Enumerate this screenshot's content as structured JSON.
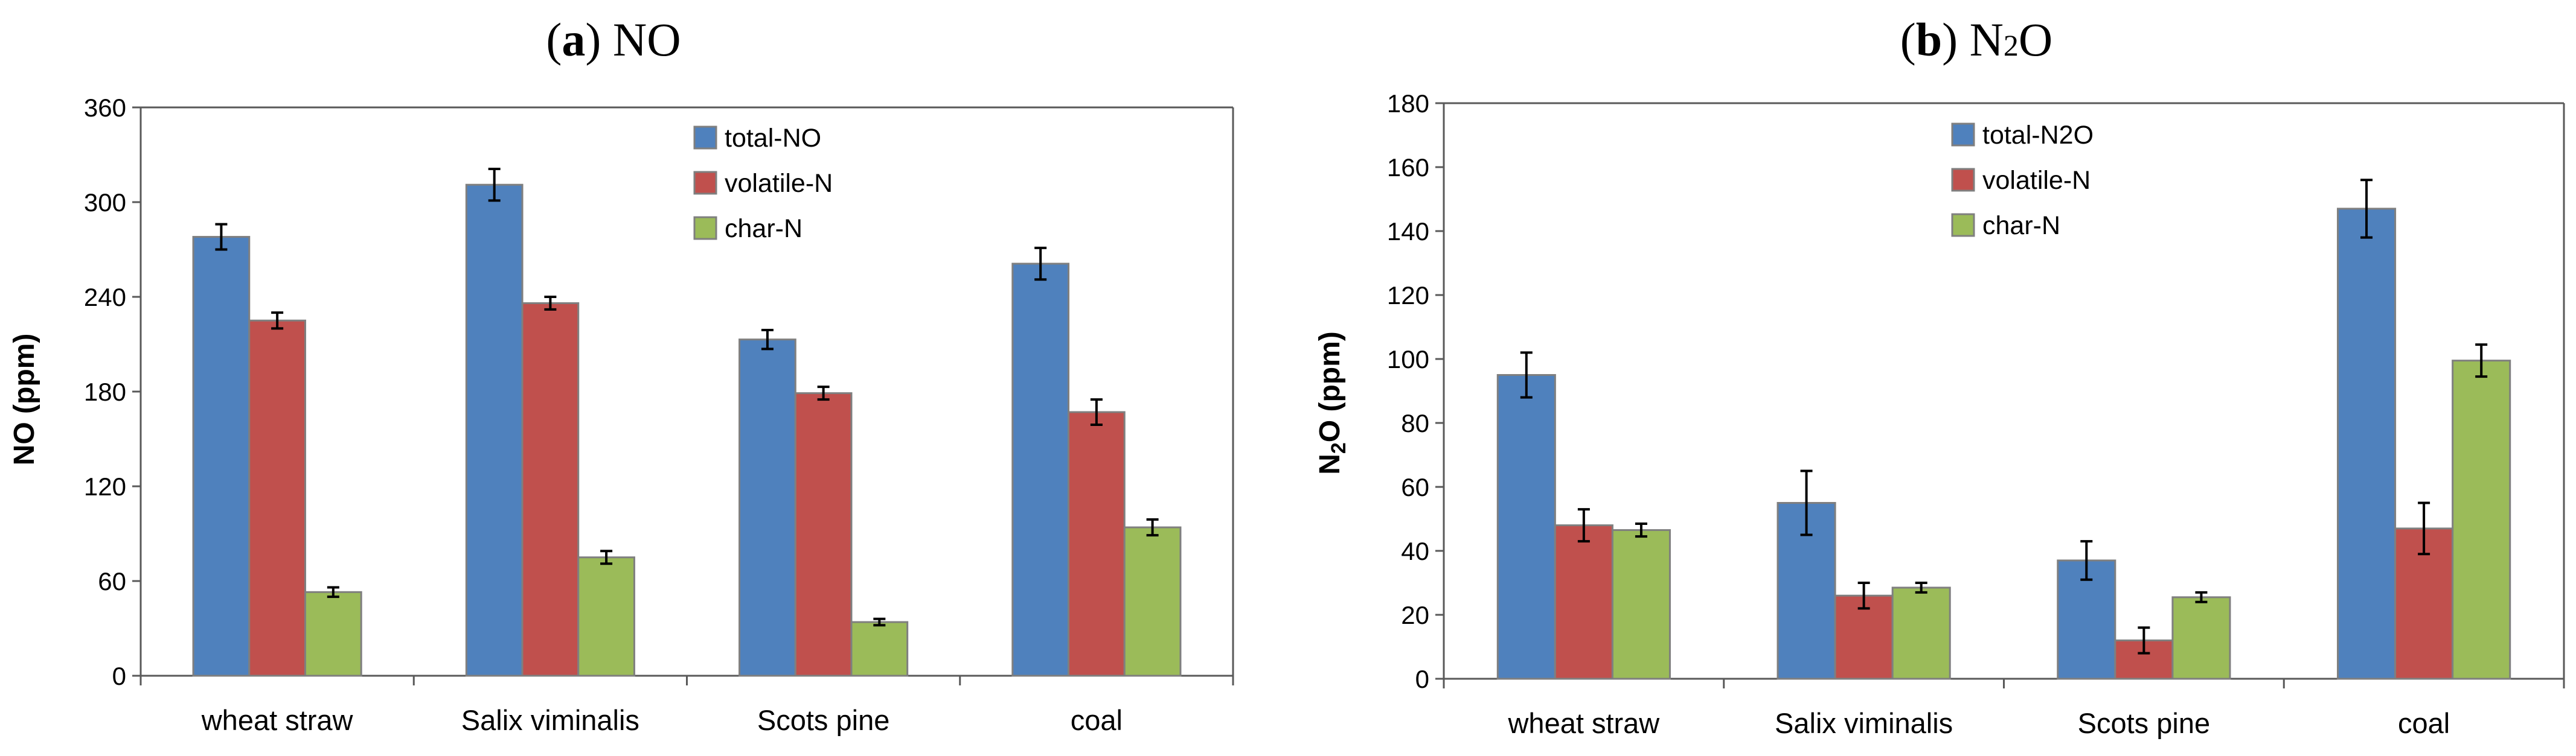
{
  "colors": {
    "total": "#4F81BD",
    "volatile": "#C0504D",
    "char": "#9BBB59",
    "bar_stroke": "#7F7F7F",
    "axis": "#595959"
  },
  "chart_data": [
    {
      "type": "bar",
      "title_letter": "a",
      "title_text": "NO",
      "ylabel": "NO (ppm)",
      "xlabel": "",
      "ylim": [
        0,
        360
      ],
      "yticks": [
        0,
        60,
        120,
        180,
        240,
        300,
        360
      ],
      "categories": [
        "wheat straw",
        "Salix viminalis",
        "Scots pine",
        "coal"
      ],
      "legend_position": "top-center",
      "series": [
        {
          "name": "total-NO",
          "color_key": "total",
          "values": [
            278,
            311,
            213,
            261
          ],
          "errors": [
            8,
            10,
            6,
            10
          ]
        },
        {
          "name": "volatile-N",
          "color_key": "volatile",
          "values": [
            225,
            236,
            179,
            167
          ],
          "errors": [
            5,
            4,
            4,
            8
          ]
        },
        {
          "name": "char-N",
          "color_key": "char",
          "values": [
            53,
            75,
            34,
            94
          ],
          "errors": [
            3,
            4,
            2,
            5
          ]
        }
      ]
    },
    {
      "type": "bar",
      "title_letter": "b",
      "title_text": "N2O",
      "ylabel": "N2O (ppm)",
      "xlabel": "",
      "ylim": [
        0,
        180
      ],
      "yticks": [
        0,
        20,
        40,
        60,
        80,
        100,
        120,
        140,
        160,
        180
      ],
      "categories": [
        "wheat straw",
        "Salix viminalis",
        "Scots pine",
        "coal"
      ],
      "legend_position": "top-center",
      "series": [
        {
          "name": "total-N2O",
          "color_key": "total",
          "values": [
            95,
            55,
            37,
            147
          ],
          "errors": [
            7,
            10,
            6,
            9
          ]
        },
        {
          "name": "volatile-N",
          "color_key": "volatile",
          "values": [
            48,
            26,
            12,
            47
          ],
          "errors": [
            5,
            4,
            4,
            8
          ]
        },
        {
          "name": "char-N",
          "color_key": "char",
          "values": [
            46.5,
            28.5,
            25.5,
            99.5
          ],
          "errors": [
            2,
            1.5,
            1.5,
            5
          ]
        }
      ]
    }
  ]
}
